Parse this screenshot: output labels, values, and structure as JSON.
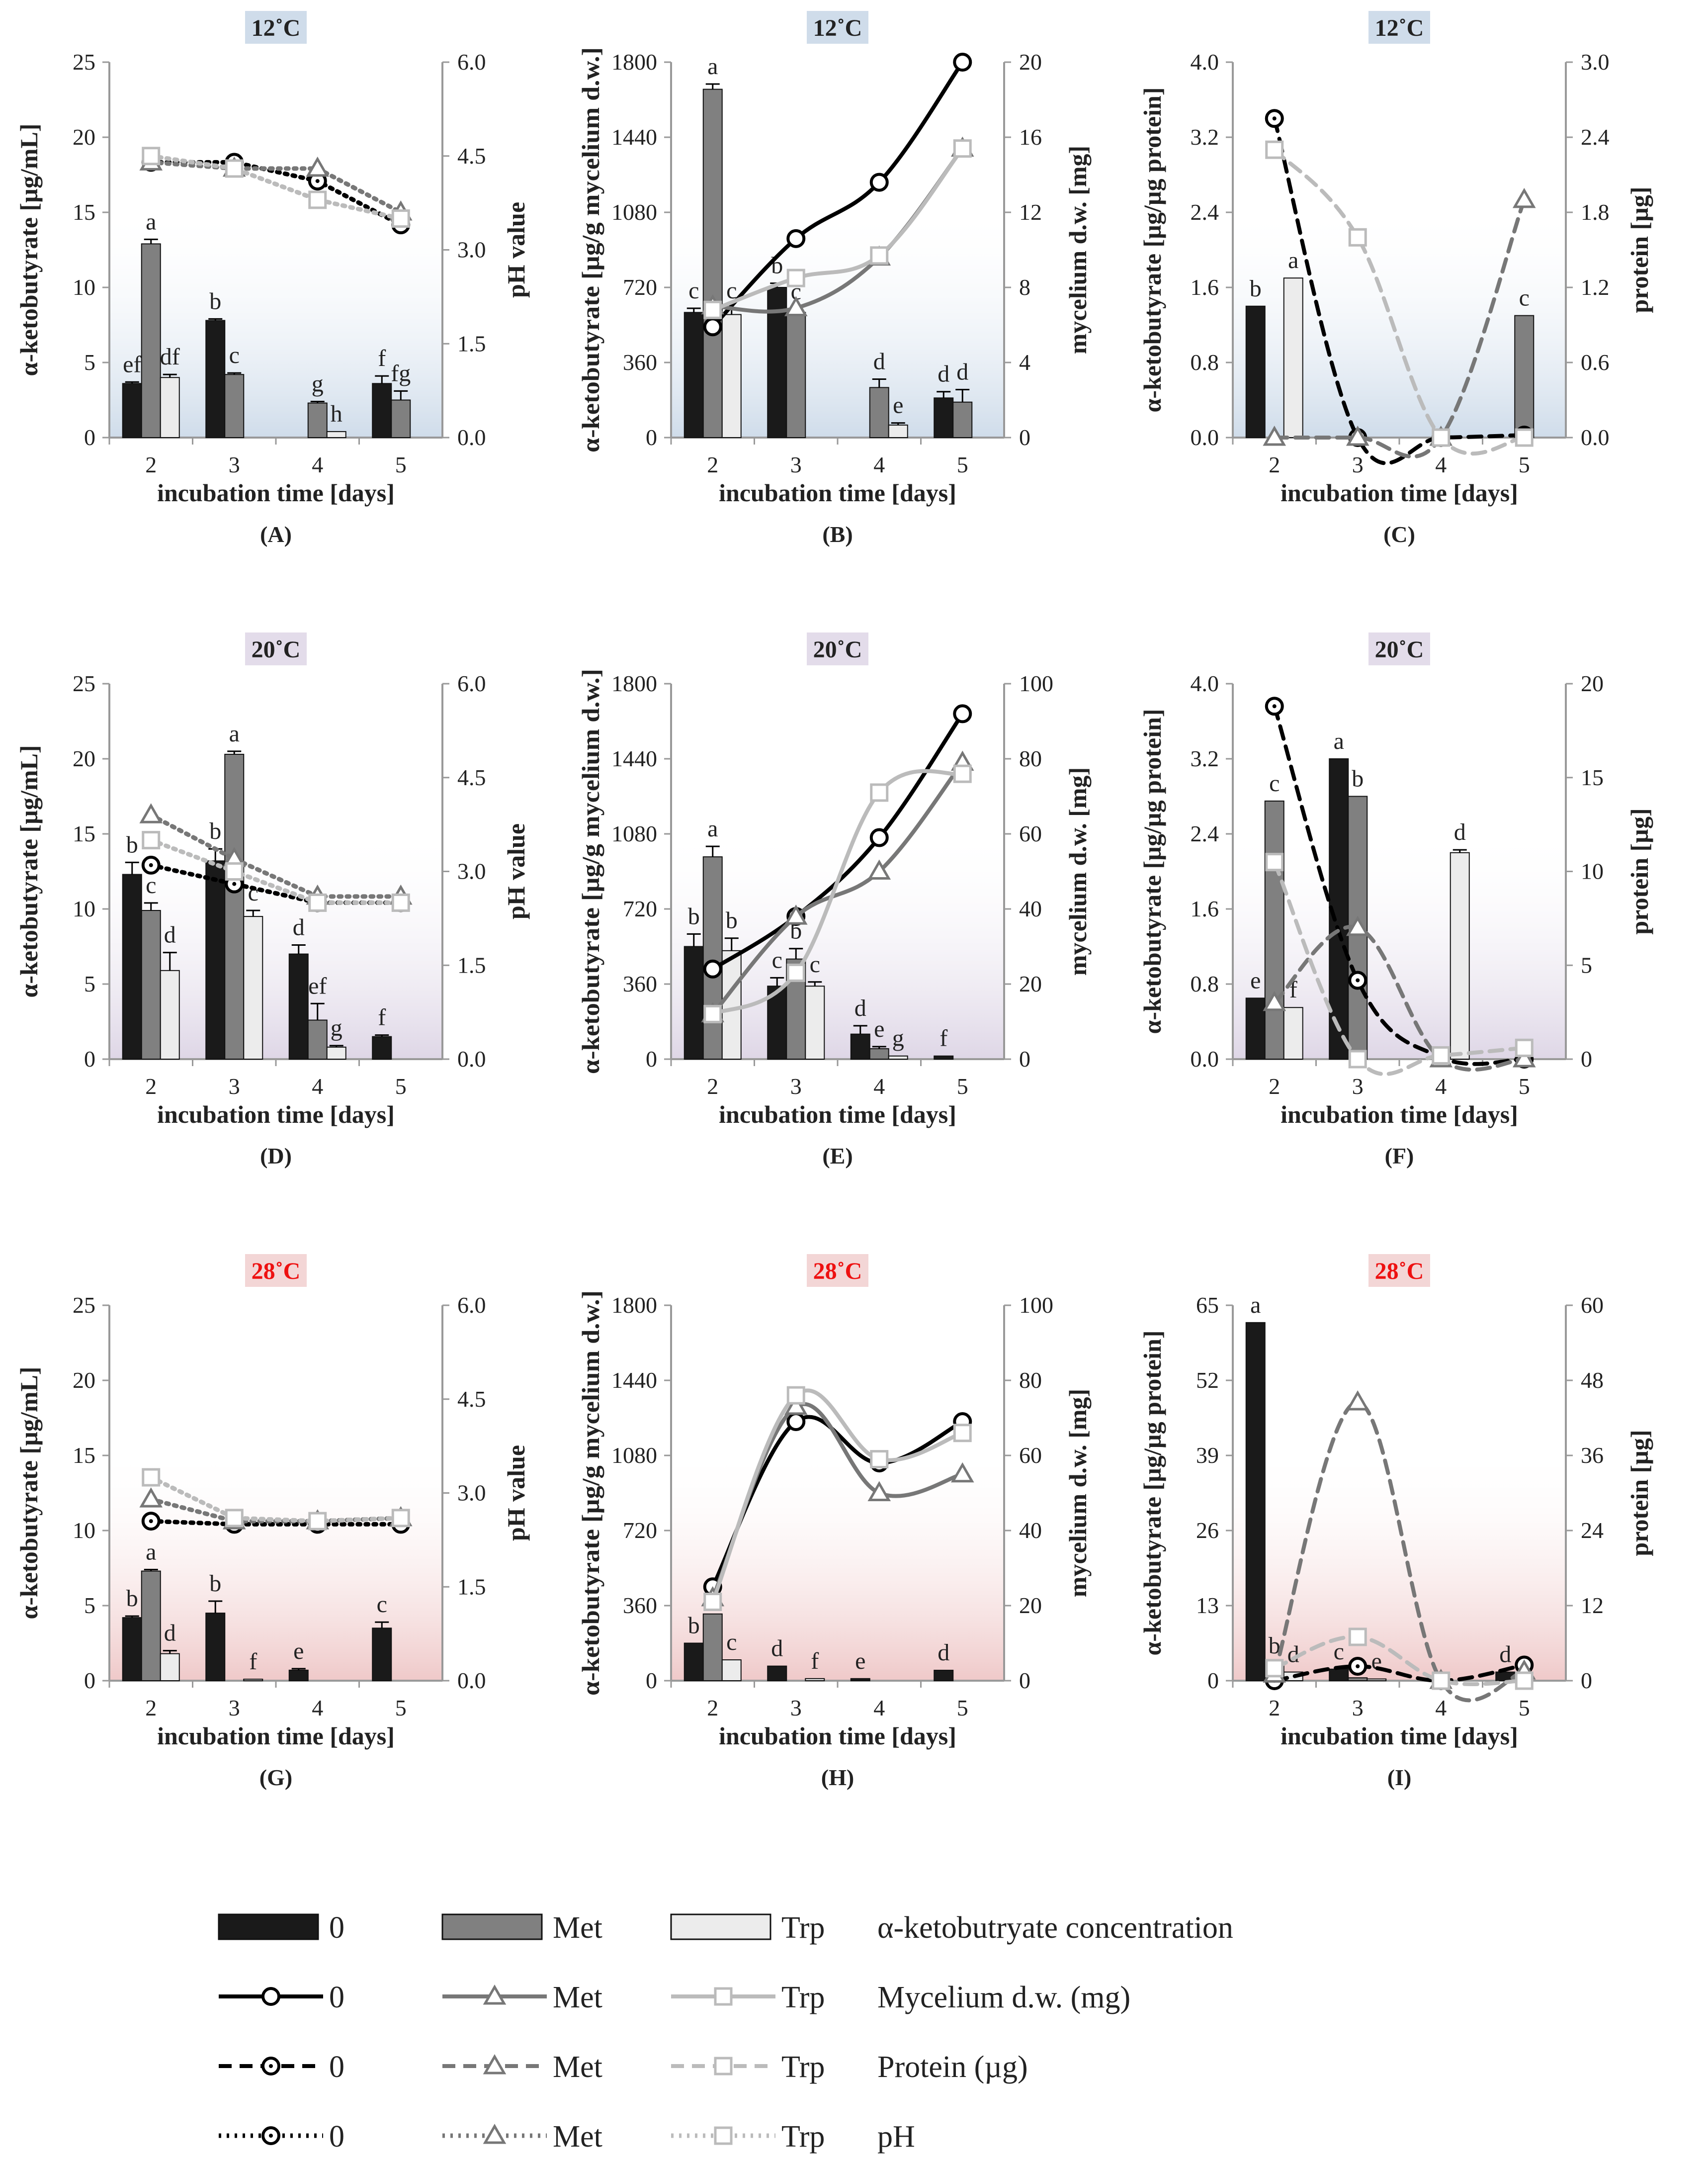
{
  "temps": [
    {
      "label": "12˚C",
      "color": "#222222",
      "box": "#cfdcea",
      "grad": "#cfdcea"
    },
    {
      "label": "20˚C",
      "color": "#222222",
      "box": "#e3dcea",
      "grad": "#ded6e6"
    },
    {
      "label": "28˚C",
      "color": "#ee1111",
      "box": "#f3d6d6",
      "grad": "#efc9c9"
    }
  ],
  "common": {
    "xlabel": "incubation time [days]",
    "x": [
      "2",
      "3",
      "4",
      "5"
    ]
  },
  "series_styles": {
    "bar_colors": {
      "0": "#1a1a1a",
      "Met": "#808080",
      "Trp": "#ececec"
    },
    "line_colors": {
      "0": "#000000",
      "Met": "#777777",
      "Trp": "#bbbbbb"
    }
  },
  "chart_data": [
    {
      "id": "A",
      "type": "bar+line",
      "panel_label": "(A)",
      "temp": 0,
      "ylabel": "α-ketobutyrate [µg/mL]",
      "ylim": [
        0,
        25
      ],
      "yticks": [
        "0",
        "5",
        "10",
        "15",
        "20",
        "25"
      ],
      "y2label": "pH value",
      "y2lim": [
        0,
        6
      ],
      "y2ticks": [
        "0.0",
        "1.5",
        "3.0",
        "4.5",
        "6.0"
      ],
      "line_kind": "ph",
      "bars": {
        "0": [
          3.6,
          7.8,
          0,
          3.6
        ],
        "Met": [
          12.9,
          4.2,
          2.3,
          2.5
        ],
        "Trp": [
          4.0,
          0,
          0.4,
          0
        ]
      },
      "errors": {
        "0": [
          0.1,
          0.1,
          0,
          0.5
        ],
        "Met": [
          0.3,
          0.1,
          0.1,
          0.6
        ],
        "Trp": [
          0.2,
          0,
          0,
          0
        ]
      },
      "labels": {
        "0": [
          "ef",
          "b",
          "",
          "f"
        ],
        "Met": [
          "a",
          "c",
          "g",
          "fg"
        ],
        "Trp": [
          "df",
          "",
          "h",
          ""
        ]
      },
      "lines": {
        "0": [
          4.4,
          4.4,
          4.1,
          3.4
        ],
        "Met": [
          4.4,
          4.3,
          4.3,
          3.6
        ],
        "Trp": [
          4.5,
          4.3,
          3.8,
          3.5
        ]
      }
    },
    {
      "id": "B",
      "type": "bar+line",
      "panel_label": "(B)",
      "temp": 0,
      "ylabel": "α-ketobutyrate [µg/g mycelium d.w.]",
      "ylim": [
        0,
        1800
      ],
      "yticks": [
        "0",
        "360",
        "720",
        "1080",
        "1440",
        "1800"
      ],
      "y2label": "mycelium d.w. [mg]",
      "y2lim": [
        0,
        20
      ],
      "y2ticks": [
        "0",
        "4",
        "8",
        "12",
        "16",
        "20"
      ],
      "line_kind": "mycelium",
      "bars": {
        "0": [
          600,
          720,
          0,
          190
        ],
        "Met": [
          1670,
          600,
          240,
          170
        ],
        "Trp": [
          590,
          0,
          60,
          0
        ]
      },
      "errors": {
        "0": [
          20,
          20,
          0,
          30
        ],
        "Met": [
          25,
          15,
          40,
          60
        ],
        "Trp": [
          30,
          0,
          10,
          0
        ]
      },
      "labels": {
        "0": [
          "c",
          "b",
          "",
          "d"
        ],
        "Met": [
          "a",
          "c",
          "d",
          "d"
        ],
        "Trp": [
          "c",
          "",
          "e",
          ""
        ]
      },
      "lines": {
        "0": [
          5.9,
          10.6,
          13.6,
          20.0
        ],
        "Met": [
          7.0,
          6.9,
          9.6,
          15.4
        ],
        "Trp": [
          6.8,
          8.5,
          9.7,
          15.4
        ]
      }
    },
    {
      "id": "C",
      "type": "bar+line",
      "panel_label": "(C)",
      "temp": 0,
      "ylabel": "α-ketobutyrate [µg/µg protein]",
      "ylim": [
        0,
        4
      ],
      "yticks": [
        "0.0",
        "0.8",
        "1.6",
        "2.4",
        "3.2",
        "4.0"
      ],
      "y2label": "protein [µg]",
      "y2lim": [
        0,
        3
      ],
      "y2ticks": [
        "0.0",
        "0.6",
        "1.2",
        "1.8",
        "2.4",
        "3.0"
      ],
      "line_kind": "protein",
      "bars": {
        "0": [
          1.4,
          0,
          0,
          0
        ],
        "Met": [
          0,
          0,
          0,
          1.3
        ],
        "Trp": [
          1.7,
          0,
          0,
          0
        ]
      },
      "errors": {
        "0": [
          0,
          0,
          0,
          0
        ],
        "Met": [
          0,
          0,
          0,
          0
        ],
        "Trp": [
          0,
          0,
          0,
          0
        ]
      },
      "labels": {
        "0": [
          "b",
          "",
          "",
          ""
        ],
        "Met": [
          "",
          "",
          "",
          "c"
        ],
        "Trp": [
          "a",
          "",
          "",
          ""
        ]
      },
      "lines": {
        "0": [
          2.55,
          0.0,
          0.0,
          0.02
        ],
        "Met": [
          0.0,
          0.0,
          0.0,
          1.9
        ],
        "Trp": [
          2.3,
          1.6,
          0.0,
          0.0
        ]
      }
    },
    {
      "id": "D",
      "type": "bar+line",
      "panel_label": "(D)",
      "temp": 1,
      "ylabel": "α-ketobutyrate [µg/mL]",
      "ylim": [
        0,
        25
      ],
      "yticks": [
        "0",
        "5",
        "10",
        "15",
        "20",
        "25"
      ],
      "y2label": "pH value",
      "y2lim": [
        0,
        6
      ],
      "y2ticks": [
        "0.0",
        "1.5",
        "3.0",
        "4.5",
        "6.0"
      ],
      "line_kind": "ph",
      "bars": {
        "0": [
          12.3,
          13.2,
          7.0,
          1.5
        ],
        "Met": [
          9.9,
          20.3,
          2.6,
          0
        ],
        "Trp": [
          5.9,
          9.5,
          0.8,
          0
        ]
      },
      "errors": {
        "0": [
          0.8,
          0.8,
          0.6,
          0.1
        ],
        "Met": [
          0.5,
          0.2,
          1.1,
          0
        ],
        "Trp": [
          1.2,
          0.4,
          0.1,
          0
        ]
      },
      "labels": {
        "0": [
          "b",
          "b",
          "d",
          "f"
        ],
        "Met": [
          "c",
          "a",
          "ef",
          ""
        ],
        "Trp": [
          "d",
          "c",
          "g",
          ""
        ]
      },
      "lines": {
        "0": [
          3.1,
          2.8,
          2.5,
          2.5
        ],
        "Met": [
          3.9,
          3.2,
          2.6,
          2.6
        ],
        "Trp": [
          3.5,
          3.0,
          2.5,
          2.5
        ]
      }
    },
    {
      "id": "E",
      "type": "bar+line",
      "panel_label": "(E)",
      "temp": 1,
      "ylabel": "α-ketobutyrate [µg/g mycelium d.w.]",
      "ylim": [
        0,
        1800
      ],
      "yticks": [
        "0",
        "360",
        "720",
        "1080",
        "1440",
        "1800"
      ],
      "y2label": "mycelium d.w. [mg]",
      "y2lim": [
        0,
        100
      ],
      "y2ticks": [
        "0",
        "20",
        "40",
        "60",
        "80",
        "100"
      ],
      "line_kind": "mycelium",
      "bars": {
        "0": [
          540,
          350,
          120,
          15
        ],
        "Met": [
          970,
          480,
          50,
          0
        ],
        "Trp": [
          520,
          350,
          15,
          0
        ]
      },
      "errors": {
        "0": [
          60,
          40,
          40,
          0
        ],
        "Met": [
          50,
          50,
          10,
          0
        ],
        "Trp": [
          60,
          20,
          0,
          0
        ]
      },
      "labels": {
        "0": [
          "b",
          "c",
          "d",
          "f"
        ],
        "Met": [
          "a",
          "b",
          "e",
          ""
        ],
        "Trp": [
          "b",
          "c",
          "g",
          ""
        ]
      },
      "lines": {
        "0": [
          24,
          38,
          59,
          92
        ],
        "Met": [
          12,
          38,
          50,
          79
        ],
        "Trp": [
          12,
          23,
          71,
          76
        ]
      }
    },
    {
      "id": "F",
      "type": "bar+line",
      "panel_label": "(F)",
      "temp": 1,
      "ylabel": "α-ketobutyrate [µg/µg protein]",
      "ylim": [
        0,
        4
      ],
      "yticks": [
        "0.0",
        "0.8",
        "1.6",
        "2.4",
        "3.2",
        "4.0"
      ],
      "y2label": "protein [µg]",
      "y2lim": [
        0,
        20
      ],
      "y2ticks": [
        "0",
        "5",
        "10",
        "15",
        "20"
      ],
      "line_kind": "protein",
      "bars": {
        "0": [
          0.65,
          3.2,
          0,
          0
        ],
        "Met": [
          2.75,
          2.8,
          0,
          0
        ],
        "Trp": [
          0.55,
          0,
          2.2,
          0
        ]
      },
      "errors": {
        "0": [
          0,
          0,
          0,
          0
        ],
        "Met": [
          0,
          0,
          0,
          0
        ],
        "Trp": [
          0,
          0,
          0.03,
          0
        ]
      },
      "labels": {
        "0": [
          "e",
          "a",
          "",
          ""
        ],
        "Met": [
          "c",
          "b",
          "",
          ""
        ],
        "Trp": [
          "f",
          "",
          "d",
          ""
        ]
      },
      "lines": {
        "0": [
          18.8,
          4.2,
          0.1,
          0.0
        ],
        "Met": [
          3.0,
          7.0,
          0.0,
          0.0
        ],
        "Trp": [
          10.5,
          0.0,
          0.2,
          0.6
        ]
      }
    },
    {
      "id": "G",
      "type": "bar+line",
      "panel_label": "(G)",
      "temp": 2,
      "ylabel": "α-ketobutyrate [µg/mL]",
      "ylim": [
        0,
        25
      ],
      "yticks": [
        "0",
        "5",
        "10",
        "15",
        "20",
        "25"
      ],
      "y2label": "pH value",
      "y2lim": [
        0,
        6
      ],
      "y2ticks": [
        "0.0",
        "1.5",
        "3.0",
        "4.5",
        "6.0"
      ],
      "line_kind": "ph",
      "bars": {
        "0": [
          4.2,
          4.5,
          0.7,
          3.5
        ],
        "Met": [
          7.3,
          0,
          0,
          0
        ],
        "Trp": [
          1.8,
          0.1,
          0,
          0
        ]
      },
      "errors": {
        "0": [
          0.1,
          0.8,
          0.1,
          0.4
        ],
        "Met": [
          0.1,
          0,
          0,
          0
        ],
        "Trp": [
          0.2,
          0,
          0,
          0
        ]
      },
      "labels": {
        "0": [
          "b",
          "b",
          "e",
          "c"
        ],
        "Met": [
          "a",
          "",
          "",
          ""
        ],
        "Trp": [
          "d",
          "f",
          "",
          ""
        ]
      },
      "lines": {
        "0": [
          2.55,
          2.5,
          2.5,
          2.5
        ],
        "Met": [
          2.9,
          2.55,
          2.55,
          2.6
        ],
        "Trp": [
          3.25,
          2.6,
          2.55,
          2.6
        ]
      }
    },
    {
      "id": "H",
      "type": "bar+line",
      "panel_label": "(H)",
      "temp": 2,
      "ylabel": "α-ketobutyrate [µg/g mycelium d.w.]",
      "ylim": [
        0,
        1800
      ],
      "yticks": [
        "0",
        "360",
        "720",
        "1080",
        "1440",
        "1800"
      ],
      "y2label": "mycelium d.w. [mg]",
      "y2lim": [
        0,
        100
      ],
      "y2ticks": [
        "0",
        "20",
        "40",
        "60",
        "80",
        "100"
      ],
      "line_kind": "mycelium",
      "bars": {
        "0": [
          180,
          70,
          10,
          50
        ],
        "Met": [
          320,
          0,
          0,
          0
        ],
        "Trp": [
          100,
          10,
          0,
          0
        ]
      },
      "errors": {
        "0": [
          0,
          0,
          0,
          0
        ],
        "Met": [
          0,
          0,
          0,
          0
        ],
        "Trp": [
          0,
          0,
          0,
          0
        ]
      },
      "labels": {
        "0": [
          "b",
          "d",
          "e",
          "d"
        ],
        "Met": [
          "a",
          "",
          "",
          ""
        ],
        "Trp": [
          "c",
          "f",
          "",
          ""
        ]
      },
      "lines": {
        "0": [
          25,
          69,
          58,
          69
        ],
        "Met": [
          22,
          73,
          50,
          55
        ],
        "Trp": [
          21,
          76,
          59,
          66
        ]
      }
    },
    {
      "id": "I",
      "type": "bar+line",
      "panel_label": "(I)",
      "temp": 2,
      "ylabel": "α-ketobutyrate [µg/µg protein]",
      "ylim": [
        0,
        65
      ],
      "yticks": [
        "0",
        "13",
        "26",
        "39",
        "52",
        "65"
      ],
      "y2label": "protein [µg]",
      "y2lim": [
        0,
        60
      ],
      "y2ticks": [
        "0",
        "12",
        "24",
        "36",
        "48",
        "60"
      ],
      "line_kind": "protein",
      "bars": {
        "0": [
          62,
          2,
          0,
          1.5
        ],
        "Met": [
          3,
          0.5,
          0,
          0
        ],
        "Trp": [
          1.5,
          0.3,
          0,
          0
        ]
      },
      "errors": {
        "0": [
          0,
          0,
          0,
          0
        ],
        "Met": [
          0,
          0,
          0,
          0
        ],
        "Trp": [
          0,
          0,
          0,
          0
        ]
      },
      "labels": {
        "0": [
          "a",
          "c",
          "",
          "d"
        ],
        "Met": [
          "b",
          "",
          "",
          ""
        ],
        "Trp": [
          "d",
          "e",
          "",
          ""
        ]
      },
      "lines": {
        "0": [
          0.0,
          2.3,
          0.0,
          2.5
        ],
        "Met": [
          1.0,
          44.5,
          0.0,
          1.5
        ],
        "Trp": [
          2.0,
          7.0,
          0.0,
          0.0
        ]
      }
    }
  ],
  "legend": {
    "rows": [
      {
        "kind": "bar",
        "items": [
          "0",
          "Met",
          "Trp"
        ],
        "desc": "α-ketobutryate concentration"
      },
      {
        "kind": "mycelium",
        "items": [
          "0",
          "Met",
          "Trp"
        ],
        "desc": "Mycelium d.w. (mg)"
      },
      {
        "kind": "protein",
        "items": [
          "0",
          "Met",
          "Trp"
        ],
        "desc": "Protein (µg)"
      },
      {
        "kind": "ph",
        "items": [
          "0",
          "Met",
          "Trp"
        ],
        "desc": "pH"
      }
    ]
  }
}
